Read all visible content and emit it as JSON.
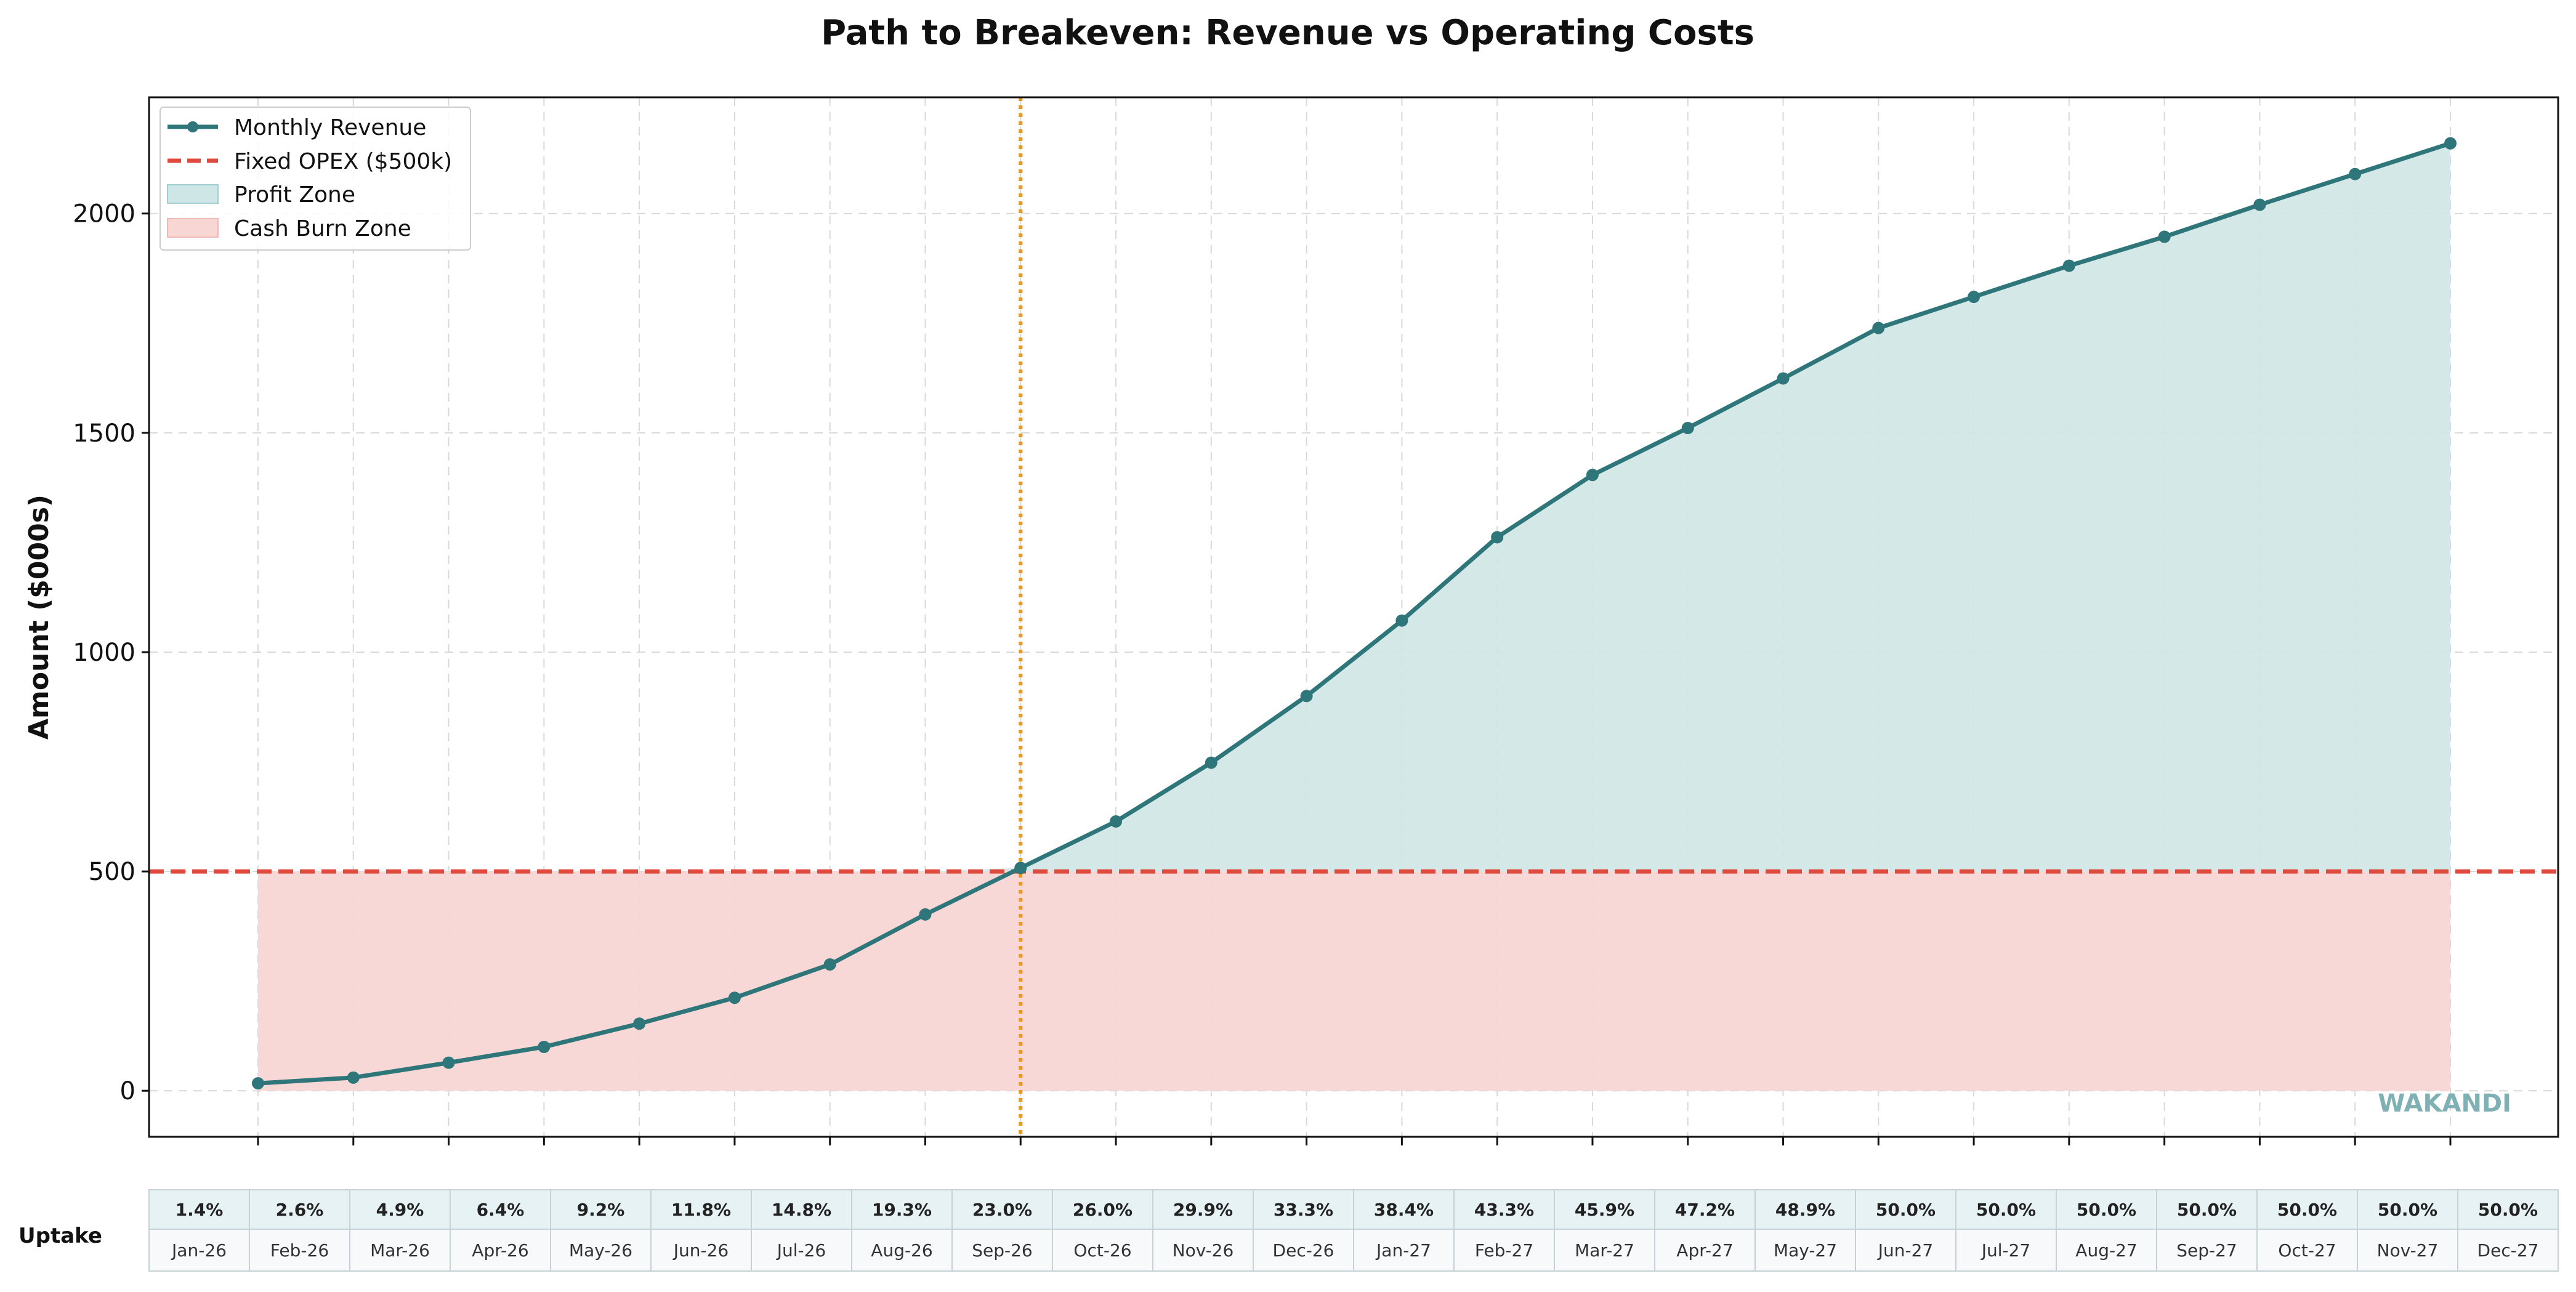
{
  "chart_data": {
    "type": "line",
    "title": "Path to Breakeven: Revenue vs Operating Costs",
    "xlabel": "",
    "ylabel": "Amount ($000s)",
    "ylim": [
      -105,
      2265
    ],
    "yticks": [
      0,
      500,
      1000,
      1500,
      2000
    ],
    "grid": true,
    "legend_position": "top-left",
    "categories": [
      "Jan-26",
      "Feb-26",
      "Mar-26",
      "Apr-26",
      "May-26",
      "Jun-26",
      "Jul-26",
      "Aug-26",
      "Sep-26",
      "Oct-26",
      "Nov-26",
      "Dec-26",
      "Jan-27",
      "Feb-27",
      "Mar-27",
      "Apr-27",
      "May-27",
      "Jun-27",
      "Jul-27",
      "Aug-27",
      "Sep-27",
      "Oct-27",
      "Nov-27",
      "Dec-27"
    ],
    "series": [
      {
        "name": "Monthly Revenue",
        "color": "#2e7679",
        "values": [
          17,
          30,
          64,
          100,
          153,
          212,
          288,
          402,
          508,
          614,
          748,
          900,
          1072,
          1262,
          1404,
          1511,
          1624,
          1739,
          1810,
          1881,
          1947,
          2020,
          2090,
          2160
        ]
      }
    ],
    "reference_line": {
      "name": "Fixed OPEX ($500k)",
      "value": 500,
      "color": "#e04b3f"
    },
    "breakeven_marker": {
      "category": "Sep-26",
      "color": "#f0961e"
    },
    "areas": [
      {
        "name": "Profit Zone",
        "color": "#cfe6e6"
      },
      {
        "name": "Cash Burn Zone",
        "color": "#f7d6d4"
      }
    ],
    "uptake": {
      "label": "Uptake",
      "values": [
        "1.4%",
        "2.6%",
        "4.9%",
        "6.4%",
        "9.2%",
        "11.8%",
        "14.8%",
        "19.3%",
        "23.0%",
        "26.0%",
        "29.9%",
        "33.3%",
        "38.4%",
        "43.3%",
        "45.9%",
        "47.2%",
        "48.9%",
        "50.0%",
        "50.0%",
        "50.0%",
        "50.0%",
        "50.0%",
        "50.0%",
        "50.0%"
      ]
    },
    "watermark": "WAKANDI"
  }
}
